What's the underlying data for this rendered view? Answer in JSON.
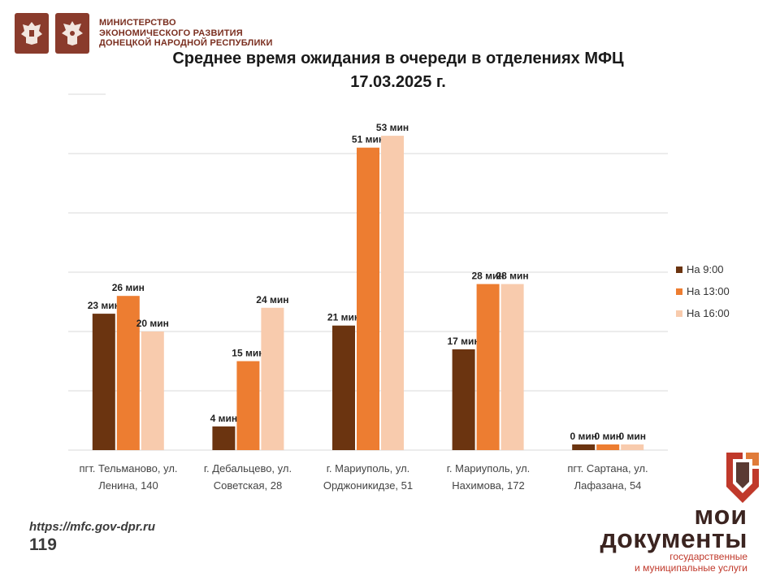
{
  "header": {
    "ministry_lines": [
      "МИНИСТЕРСТВО",
      "ЭКОНОМИЧЕСКОГО РАЗВИТИЯ",
      "ДОНЕЦКОЙ НАРОДНОЙ РЕСПУБЛИКИ"
    ]
  },
  "chart_data": {
    "type": "bar",
    "title": "Среднее время ожидания в очереди в отделениях МФЦ",
    "subtitle": "17.03.2025   г.",
    "categories": [
      [
        "пгт. Тельманово,  ул.",
        "Ленина, 140"
      ],
      [
        "г. Дебальцево, ул.",
        "Советская, 28"
      ],
      [
        "г. Мариуполь, ул.",
        "Орджоникидзе, 51"
      ],
      [
        "г. Мариуполь, ул.",
        "Нахимова, 172"
      ],
      [
        "пгт. Сартана, ул.",
        "Лафазана, 54"
      ]
    ],
    "series": [
      {
        "name": "На 9:00",
        "color": "#6b3410",
        "values": [
          23,
          4,
          21,
          17,
          0
        ]
      },
      {
        "name": "На 13:00",
        "color": "#ed7d31",
        "values": [
          26,
          15,
          51,
          28,
          0
        ]
      },
      {
        "name": "На 16:00",
        "color": "#f8cbad",
        "values": [
          20,
          24,
          53,
          28,
          0
        ]
      }
    ],
    "value_suffix": " мин",
    "ylim": [
      0,
      60
    ],
    "grid": true,
    "legend_position": "right"
  },
  "footer": {
    "url": "https://mfc.gov-dpr.ru",
    "page": "119"
  },
  "brand": {
    "line1": "мои",
    "line2": "документы",
    "sub1": "государственные",
    "sub2": "и муниципальные услуги"
  }
}
